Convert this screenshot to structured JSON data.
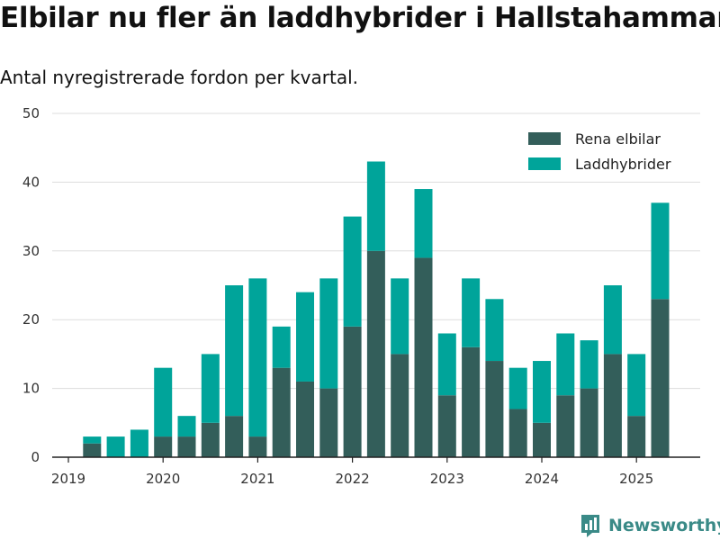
{
  "title": "Elbilar nu fler än laddhybrider i Hallstahammar",
  "subtitle": "Antal nyregistrerade fordon per kvartal.",
  "brand": "Newsworthy",
  "colors": {
    "bev": "#335e5a",
    "phev": "#00a49a",
    "grid": "#dddddd",
    "axis": "#222222"
  },
  "chart_data": {
    "type": "bar",
    "stacked": true,
    "title": "Elbilar nu fler än laddhybrider i Hallstahammar",
    "subtitle": "Antal nyregistrerade fordon per kvartal.",
    "ylim": [
      0,
      50
    ],
    "yticks": [
      0,
      10,
      20,
      30,
      40,
      50
    ],
    "xtick_labels": [
      "2019",
      "2020",
      "2021",
      "2022",
      "2023",
      "2024",
      "2025"
    ],
    "grid": true,
    "legend_position": "top-right",
    "categories": [
      "2019 Q2",
      "2019 Q3",
      "2019 Q4",
      "2020 Q1",
      "2020 Q2",
      "2020 Q3",
      "2020 Q4",
      "2021 Q1",
      "2021 Q2",
      "2021 Q3",
      "2021 Q4",
      "2022 Q1",
      "2022 Q2",
      "2022 Q3",
      "2022 Q4",
      "2023 Q1",
      "2023 Q2",
      "2023 Q3",
      "2023 Q4",
      "2024 Q1",
      "2024 Q2",
      "2024 Q3",
      "2024 Q4",
      "2025 Q1",
      "2025 Q2"
    ],
    "series": [
      {
        "name": "Rena elbilar",
        "values": [
          2,
          0,
          0,
          3,
          3,
          5,
          6,
          3,
          13,
          11,
          10,
          19,
          30,
          15,
          29,
          9,
          16,
          14,
          7,
          5,
          9,
          10,
          15,
          6,
          23
        ]
      },
      {
        "name": "Laddhybrider",
        "values": [
          1,
          3,
          4,
          10,
          3,
          10,
          19,
          23,
          6,
          13,
          16,
          16,
          13,
          11,
          10,
          9,
          10,
          9,
          6,
          9,
          9,
          7,
          10,
          9,
          14
        ]
      }
    ]
  }
}
